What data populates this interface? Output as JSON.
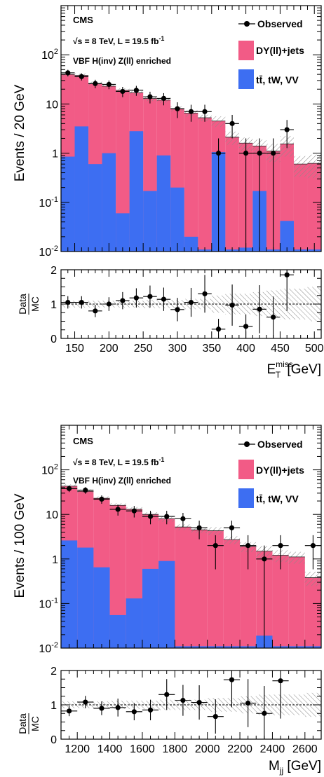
{
  "colors": {
    "dy": "#f25b86",
    "tt": "#3d6ef2",
    "data": "#000000",
    "hatch": "#9a9a9a"
  },
  "legend": {
    "observed": "Observed",
    "dy": "DY(ll)+jets",
    "tt": "tt̄, tW, VV"
  },
  "annotations": {
    "cms": "CMS",
    "energy": "√s = 8 TeV, L = 19.5 fb",
    "energy_sup": "-1",
    "region": "VBF H(inv) Z(ll) enriched"
  },
  "ratio_label": {
    "num": "Data",
    "den": "MC"
  },
  "chart_data": [
    {
      "type": "bar",
      "stacked": true,
      "log_y": true,
      "ylabel": "Events / 20 GeV",
      "xlabel": "E",
      "xlabel_sub": "T",
      "xlabel_sup": "miss",
      "xlabel_unit": " [GeV]",
      "xlim": [
        130,
        510
      ],
      "ylim": [
        0.01,
        1000
      ],
      "bin_width": 20,
      "x_ticks": [
        150,
        200,
        250,
        300,
        350,
        400,
        450,
        500
      ],
      "x_tick_labels": [
        "150",
        "200",
        "250",
        "300",
        "350",
        "400",
        "450",
        "500"
      ],
      "y_ticks": [
        0.01,
        0.1,
        1,
        10,
        100
      ],
      "y_tick_labels": [
        "10^-2",
        "10^-1",
        "1",
        "10",
        "10^2"
      ],
      "bin_edges": [
        130,
        150,
        170,
        190,
        210,
        230,
        250,
        270,
        290,
        310,
        330,
        350,
        370,
        390,
        410,
        430,
        450,
        470,
        490,
        510
      ],
      "series": [
        {
          "name": "tt̄, tW, VV",
          "values": [
            0.85,
            3.5,
            0.6,
            1.0,
            0.06,
            2.8,
            0.17,
            0.9,
            0.2,
            0.02,
            0.011,
            1.05,
            0.011,
            0.012,
            0.17,
            0.011,
            0.042,
            0.011,
            0.011
          ]
        },
        {
          "name": "DY(ll)+jets",
          "values": [
            39,
            34.5,
            25.4,
            22,
            18.9,
            14.2,
            12.8,
            11.1,
            7.8,
            6.48,
            5.25,
            3.45,
            2.1,
            1.59,
            1.23,
            1.09,
            1.498,
            0.59,
            0.61
          ]
        }
      ],
      "uncertainty_rel": [
        0.1,
        0.1,
        0.1,
        0.1,
        0.1,
        0.1,
        0.12,
        0.12,
        0.12,
        0.15,
        0.15,
        0.25,
        0.3,
        0.3,
        0.35,
        0.4,
        0.45,
        0.45,
        0.5
      ],
      "observed": {
        "x": [
          140,
          160,
          180,
          200,
          220,
          240,
          260,
          280,
          300,
          320,
          340,
          360,
          380,
          400,
          420,
          440,
          460
        ],
        "y": [
          43,
          36,
          26,
          25,
          18,
          19,
          14,
          13,
          8,
          7,
          7,
          1,
          4,
          1,
          1,
          1,
          3
        ]
      },
      "ratio": {
        "ylim": [
          0,
          2
        ],
        "y_ticks": [
          0,
          1,
          2
        ],
        "y_tick_labels": [
          "0",
          "1",
          "2"
        ],
        "x": [
          140,
          160,
          180,
          200,
          220,
          240,
          260,
          280,
          300,
          320,
          340,
          360,
          380,
          400,
          420,
          440,
          460
        ],
        "values": [
          1.05,
          1.05,
          0.8,
          1.0,
          1.1,
          1.18,
          1.22,
          1.14,
          0.84,
          1.05,
          1.3,
          0.27,
          0.97,
          0.35,
          0.85,
          0.62,
          1.85
        ],
        "errors": [
          0.18,
          0.18,
          0.18,
          0.2,
          0.25,
          0.28,
          0.32,
          0.34,
          0.34,
          0.42,
          0.55,
          0.3,
          0.6,
          0.35,
          0.7,
          0.6,
          1.05
        ],
        "band_rel": [
          0.1,
          0.1,
          0.1,
          0.1,
          0.1,
          0.1,
          0.12,
          0.12,
          0.12,
          0.15,
          0.15,
          0.25,
          0.3,
          0.3,
          0.35,
          0.4,
          0.45,
          0.45,
          0.5
        ]
      }
    },
    {
      "type": "bar",
      "stacked": true,
      "log_y": true,
      "ylabel": "Events / 100 GeV",
      "xlabel": "M",
      "xlabel_sub": "jj",
      "xlabel_sup": "",
      "xlabel_unit": " [GeV]",
      "xlim": [
        1100,
        2700
      ],
      "ylim": [
        0.01,
        1000
      ],
      "bin_width": 100,
      "x_ticks": [
        1200,
        1400,
        1600,
        1800,
        2000,
        2200,
        2400,
        2600
      ],
      "x_tick_labels": [
        "1200",
        "1400",
        "1600",
        "1800",
        "2000",
        "2200",
        "2400",
        "2600"
      ],
      "y_ticks": [
        0.01,
        0.1,
        1,
        10,
        100
      ],
      "y_tick_labels": [
        "10^-2",
        "10^-1",
        "1",
        "10",
        "10^2"
      ],
      "bin_edges": [
        1100,
        1200,
        1300,
        1400,
        1500,
        1600,
        1700,
        1800,
        1900,
        2000,
        2100,
        2200,
        2300,
        2400,
        2500,
        2600,
        2700
      ],
      "series": [
        {
          "name": "tt̄, tW, VV",
          "values": [
            2.6,
            1.8,
            0.65,
            0.055,
            0.13,
            0.6,
            0.9,
            0.011,
            0.011,
            0.011,
            0.011,
            0.011,
            0.019,
            0.011,
            0.011,
            0.011
          ]
        },
        {
          "name": "DY(ll)+jets",
          "values": [
            40.4,
            31.2,
            22.35,
            15.945,
            12.87,
            9.4,
            7.1,
            5.2,
            4.5,
            4.3,
            2.7,
            1.9,
            1.48,
            1.2,
            1.1,
            0.37
          ]
        }
      ],
      "uncertainty_rel": [
        0.1,
        0.1,
        0.1,
        0.12,
        0.12,
        0.12,
        0.15,
        0.15,
        0.15,
        0.2,
        0.2,
        0.25,
        0.3,
        0.3,
        0.3,
        0.35
      ],
      "observed": {
        "x": [
          1150,
          1250,
          1350,
          1450,
          1550,
          1650,
          1750,
          1850,
          1950,
          2050,
          2150,
          2250,
          2350,
          2450,
          2650
        ],
        "y": [
          38,
          35,
          22,
          13,
          12,
          9,
          9,
          8,
          5,
          2,
          5,
          2,
          1,
          2,
          2
        ]
      },
      "ratio": {
        "ylim": [
          0,
          2
        ],
        "y_ticks": [
          0,
          1,
          2
        ],
        "y_tick_labels": [
          "0",
          "1",
          "2"
        ],
        "x": [
          1150,
          1250,
          1350,
          1450,
          1550,
          1650,
          1750,
          1850,
          1950,
          2050,
          2150,
          2250,
          2350,
          2450
        ],
        "values": [
          0.82,
          1.08,
          0.9,
          0.92,
          0.8,
          0.85,
          1.3,
          1.13,
          1.07,
          0.66,
          1.73,
          1.05,
          0.75,
          1.7
        ],
        "errors": [
          0.15,
          0.18,
          0.2,
          0.26,
          0.25,
          0.3,
          0.45,
          0.45,
          0.5,
          0.5,
          0.8,
          0.7,
          0.8,
          1.1
        ],
        "band_rel": [
          0.1,
          0.1,
          0.1,
          0.12,
          0.12,
          0.12,
          0.15,
          0.15,
          0.15,
          0.2,
          0.2,
          0.25,
          0.3,
          0.3,
          0.3,
          0.35
        ]
      }
    }
  ]
}
